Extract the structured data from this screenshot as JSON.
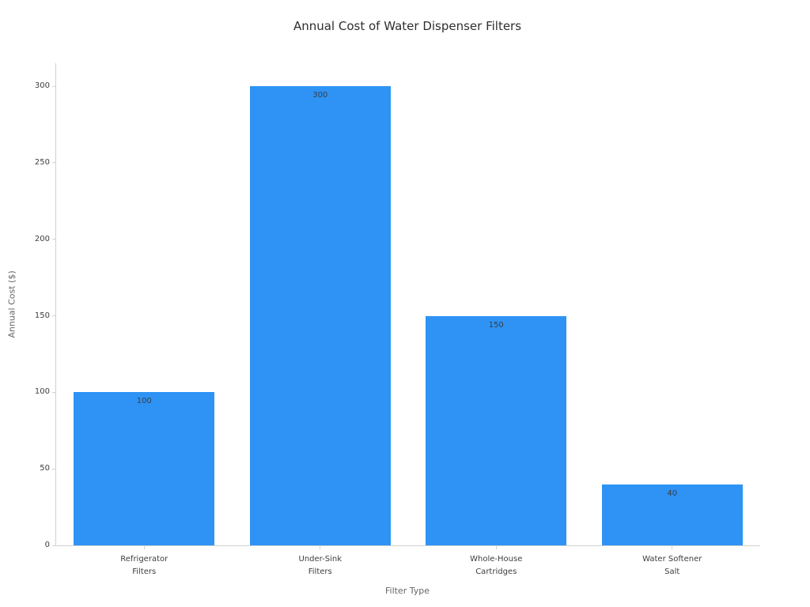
{
  "chart_data": {
    "type": "bar",
    "title": "Annual Cost of Water Dispenser Filters",
    "categories": [
      "Refrigerator\nFilters",
      "Under-Sink\nFilters",
      "Whole-House\nCartridges",
      "Water Softener\nSalt"
    ],
    "values": [
      100,
      300,
      150,
      40
    ],
    "value_labels": [
      "100",
      "300",
      "150",
      "40"
    ],
    "xlabel": "Filter Type",
    "ylabel": "Annual Cost ($)",
    "ylim": [
      0,
      315
    ],
    "yticks": [
      0,
      50,
      100,
      150,
      200,
      250,
      300
    ],
    "grid": false,
    "legend": "none",
    "colors": {
      "bar": "#2e93f5",
      "value_label": "#3d3d3d",
      "axis_line": "#d0d0d0",
      "tick_label": "#3d3d3d",
      "axis_label": "#666666",
      "title": "#2e2e2e",
      "background": "#ffffff"
    }
  }
}
